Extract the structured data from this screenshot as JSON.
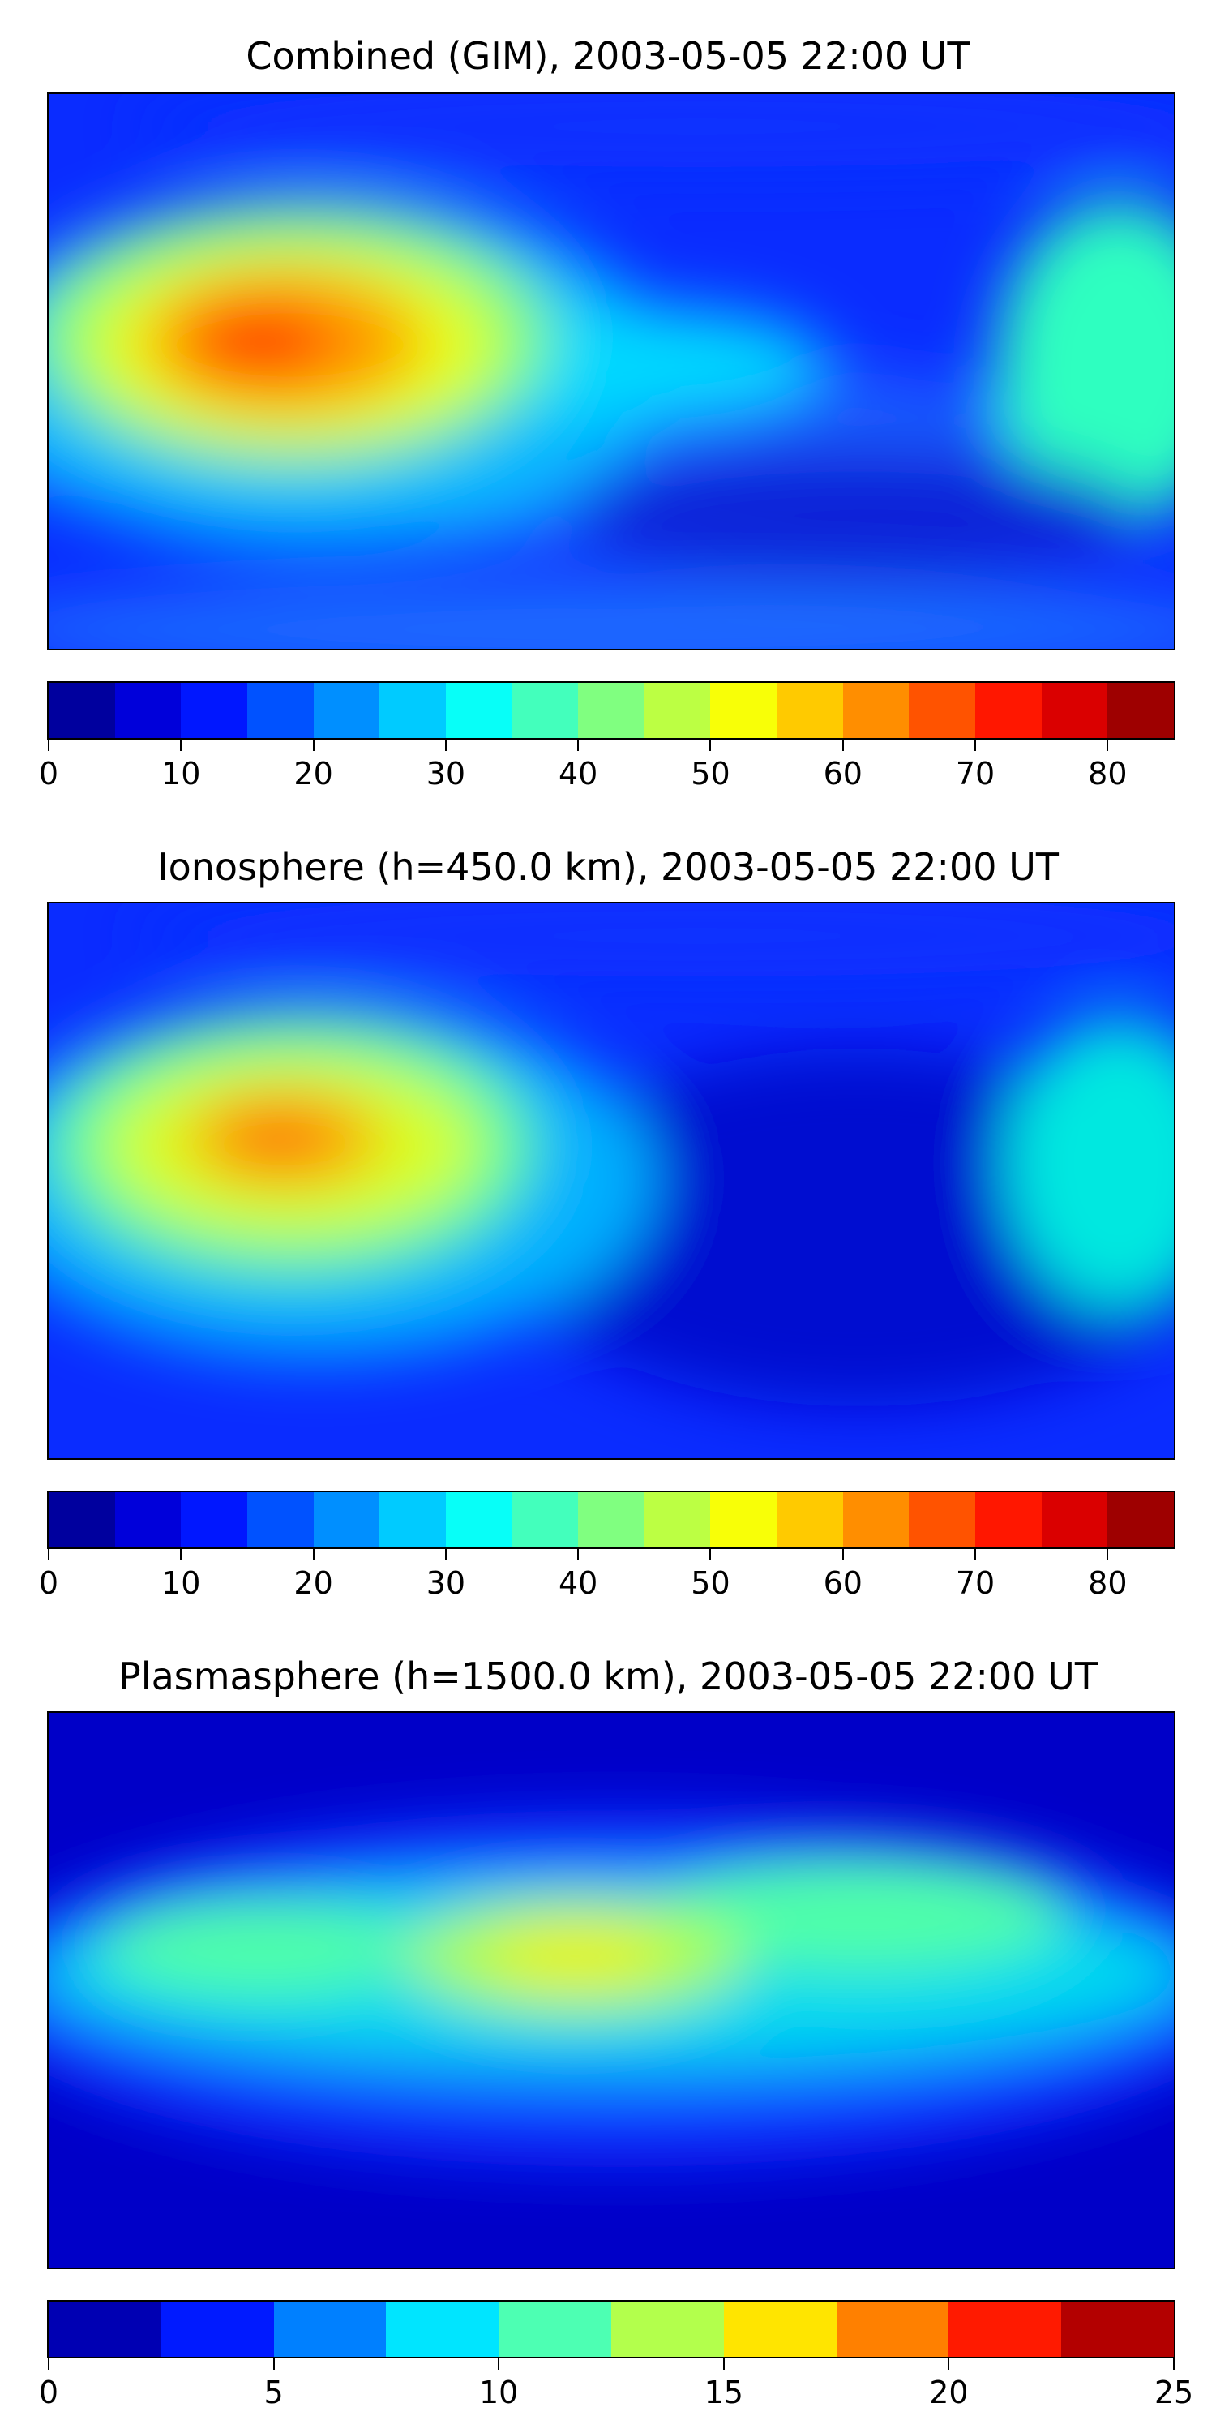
{
  "panels": [
    {
      "title": "Combined (GIM), 2003-05-05 22:00 UT",
      "colorbar": {
        "min": 0,
        "max": 85,
        "step": 5,
        "ticks": [
          "0",
          "10",
          "20",
          "30",
          "40",
          "50",
          "60",
          "70",
          "80"
        ],
        "tick_values": [
          0,
          10,
          20,
          30,
          40,
          50,
          60,
          70,
          80
        ]
      }
    },
    {
      "title": "Ionosphere  (h=450.0 km), 2003-05-05 22:00 UT",
      "colorbar": {
        "min": 0,
        "max": 85,
        "step": 5,
        "ticks": [
          "0",
          "10",
          "20",
          "30",
          "40",
          "50",
          "60",
          "70",
          "80"
        ],
        "tick_values": [
          0,
          10,
          20,
          30,
          40,
          50,
          60,
          70,
          80
        ]
      }
    },
    {
      "title": "Plasmasphere (h=1500.0 km), 2003-05-05 22:00 UT",
      "colorbar": {
        "min": 0,
        "max": 25,
        "step": 2.5,
        "ticks": [
          "0",
          "5",
          "10",
          "15",
          "20",
          "25"
        ],
        "tick_values": [
          0,
          5,
          10,
          15,
          20,
          25
        ]
      }
    }
  ],
  "colormap": "jet"
}
